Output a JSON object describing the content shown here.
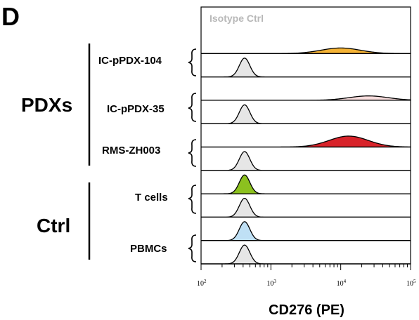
{
  "panel_letter": "D",
  "chart_data": {
    "type": "histogram-overlay",
    "xlabel": "CD276 (PE)",
    "x_scale": "log10",
    "xlim": [
      100,
      100000
    ],
    "x_ticks": [
      {
        "base": "10",
        "exp": "2"
      },
      {
        "base": "10",
        "exp": "3"
      },
      {
        "base": "10",
        "exp": "4"
      },
      {
        "base": "10",
        "exp": "5"
      }
    ],
    "isotype_label": "Isotype Ctrl",
    "groups": [
      {
        "name": "PDXs",
        "samples": [
          "IC-pPDX-104",
          "IC-pPDX-35",
          "RMS-ZH003"
        ]
      },
      {
        "name": "Ctrl",
        "samples": [
          "T cells",
          "PBMCs"
        ]
      }
    ],
    "rows": [
      {
        "sample": "IC-pPDX-104",
        "stain": "CD276",
        "fill": "#f5b335",
        "peak_x": 10000,
        "height": 0.28
      },
      {
        "sample": "IC-pPDX-104",
        "stain": "Isotype",
        "fill": "#e6e6e6",
        "peak_x": 420,
        "height": 0.95
      },
      {
        "sample": "IC-pPDX-35",
        "stain": "CD276",
        "fill": "#f9dede",
        "peak_x": 25000,
        "height": 0.22
      },
      {
        "sample": "IC-pPDX-35",
        "stain": "Isotype",
        "fill": "#e6e6e6",
        "peak_x": 420,
        "height": 0.95
      },
      {
        "sample": "RMS-ZH003",
        "stain": "CD276",
        "fill": "#d8232a",
        "peak_x": 13000,
        "height": 0.55
      },
      {
        "sample": "RMS-ZH003",
        "stain": "Isotype",
        "fill": "#e6e6e6",
        "peak_x": 420,
        "height": 0.95
      },
      {
        "sample": "T cells",
        "stain": "CD276",
        "fill": "#8cc11f",
        "peak_x": 420,
        "height": 0.95
      },
      {
        "sample": "T cells",
        "stain": "Isotype",
        "fill": "#e6e6e6",
        "peak_x": 420,
        "height": 0.95
      },
      {
        "sample": "PBMCs",
        "stain": "CD276",
        "fill": "#bfe0f5",
        "peak_x": 420,
        "height": 0.95
      },
      {
        "sample": "PBMCs",
        "stain": "Isotype",
        "fill": "#e6e6e6",
        "peak_x": 420,
        "height": 0.95
      }
    ],
    "grid": false,
    "legend": "none"
  }
}
